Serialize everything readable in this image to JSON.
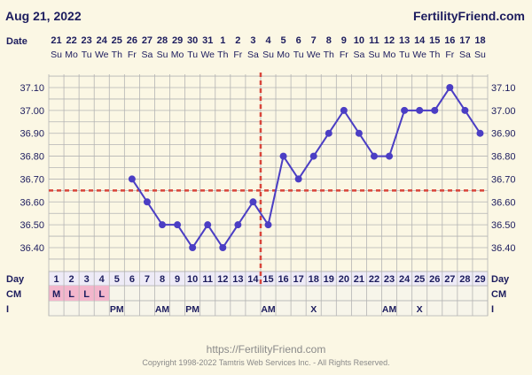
{
  "header": {
    "date": "Aug 21, 2022",
    "site": "FertilityFriend.com"
  },
  "footer": {
    "url": "https://FertilityFriend.com",
    "copyright": "Copyright 1998-2022 Tamtris Web Services Inc. - All Rights Reserved."
  },
  "colors": {
    "line": "#4b3ec4",
    "coverline": "#d9453a",
    "grid": "#b4b4b4",
    "text": "#1c1c5e",
    "chart_bg": "#fbf7e4",
    "cm_highlight": "#f3b6cc"
  },
  "chart_data": {
    "type": "line",
    "row_labels": {
      "date": "Date",
      "day": "Day",
      "cm": "CM",
      "i": "I"
    },
    "dates": [
      "21",
      "22",
      "23",
      "24",
      "25",
      "26",
      "27",
      "28",
      "29",
      "30",
      "31",
      "1",
      "2",
      "3",
      "4",
      "5",
      "6",
      "7",
      "8",
      "9",
      "10",
      "11",
      "12",
      "13",
      "14",
      "15",
      "16",
      "17",
      "18"
    ],
    "weekdays": [
      "Su",
      "Mo",
      "Tu",
      "We",
      "Th",
      "Fr",
      "Sa",
      "Su",
      "Mo",
      "Tu",
      "We",
      "Th",
      "Fr",
      "Sa",
      "Su",
      "Mo",
      "Tu",
      "We",
      "Th",
      "Fr",
      "Sa",
      "Su",
      "Mo",
      "Tu",
      "We",
      "Th",
      "Fr",
      "Sa",
      "Su"
    ],
    "days": [
      "1",
      "2",
      "3",
      "4",
      "5",
      "6",
      "7",
      "8",
      "9",
      "10",
      "11",
      "12",
      "13",
      "14",
      "15",
      "16",
      "17",
      "18",
      "19",
      "20",
      "21",
      "22",
      "23",
      "24",
      "25",
      "26",
      "27",
      "28",
      "29"
    ],
    "temperatures": [
      null,
      null,
      null,
      null,
      null,
      36.7,
      36.6,
      36.5,
      36.5,
      36.4,
      36.5,
      36.4,
      36.5,
      36.6,
      36.5,
      36.8,
      36.7,
      36.8,
      36.9,
      37.0,
      36.9,
      36.8,
      36.8,
      37.0,
      37.0,
      37.0,
      37.1,
      37.0,
      36.9
    ],
    "y_ticks": [
      "37.10",
      "37.00",
      "36.90",
      "36.80",
      "36.70",
      "36.60",
      "36.50",
      "36.40"
    ],
    "ylim": [
      36.33,
      37.17
    ],
    "coverline": 36.65,
    "ovulation_day": 15,
    "cm": [
      "M",
      "L",
      "L",
      "L",
      "",
      "",
      "",
      "",
      "",
      "",
      "",
      "",
      "",
      "",
      "",
      "",
      "",
      "",
      "",
      "",
      "",
      "",
      "",
      "",
      "",
      "",
      "",
      "",
      ""
    ],
    "i": [
      "",
      "",
      "",
      "",
      "PM",
      "",
      "",
      "AM",
      "",
      "PM",
      "",
      "",
      "",
      "",
      "AM",
      "",
      "",
      "X",
      "",
      "",
      "",
      "",
      "AM",
      "",
      "X",
      "",
      "",
      "",
      ""
    ]
  }
}
